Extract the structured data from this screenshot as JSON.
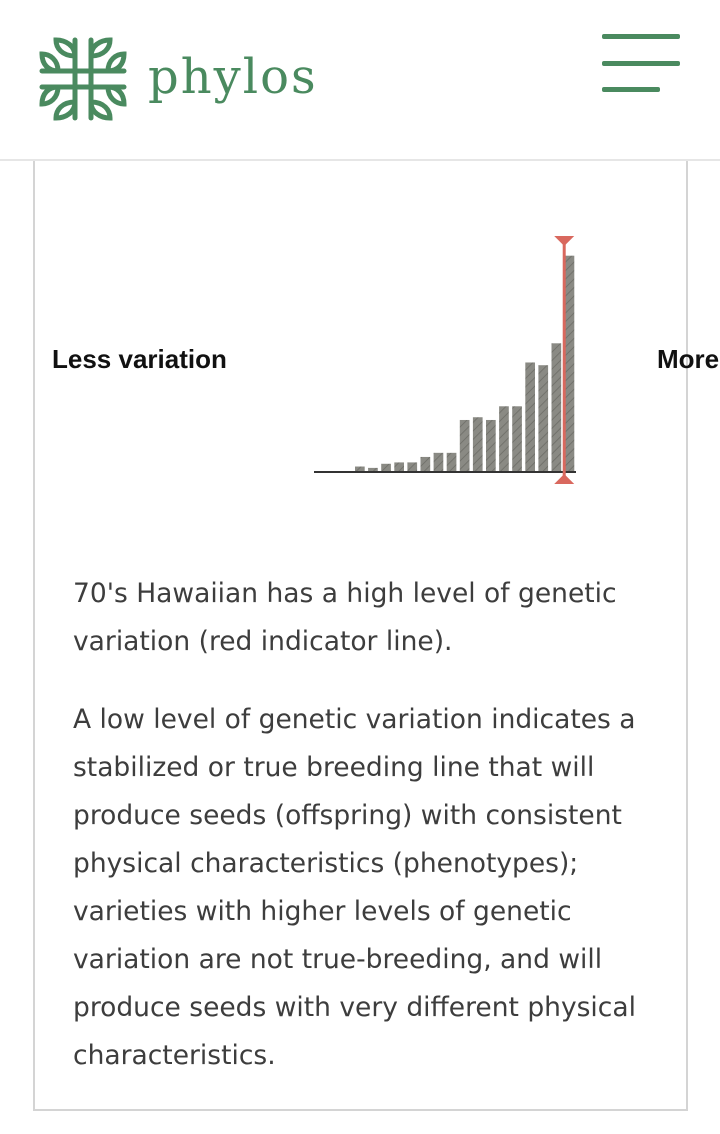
{
  "header": {
    "brand": "phylos",
    "brand_color": "#4a8a5f",
    "logo_icon": "phylos-logo-icon",
    "menu_icon": "hamburger-menu-icon"
  },
  "chart_labels": {
    "less": "Less variation",
    "more": "More variation"
  },
  "chart_data": {
    "type": "bar",
    "title": "",
    "xlabel": "",
    "ylabel": "",
    "bar_color": "#8a8a84",
    "indicator_color": "#d9685e",
    "values": [
      0,
      0,
      0,
      2,
      1.5,
      3,
      3.5,
      3.5,
      5.5,
      7,
      7,
      19,
      20,
      19,
      24,
      24,
      40,
      39,
      47,
      79
    ],
    "ylim": [
      0,
      84
    ],
    "indicator_position": 18.6,
    "indicator_label": "70's Hawaiian"
  },
  "description": {
    "paragraph1": "70's Hawaiian has a high level of genetic variation (red indicator line).",
    "paragraph2": "A low level of genetic variation indicates a stabilized or true breeding line that will produce seeds (offspring) with consistent physical characteristics (phenotypes); varieties with higher levels of genetic variation are not true-breeding, and will produce seeds with very different physical characteristics."
  }
}
